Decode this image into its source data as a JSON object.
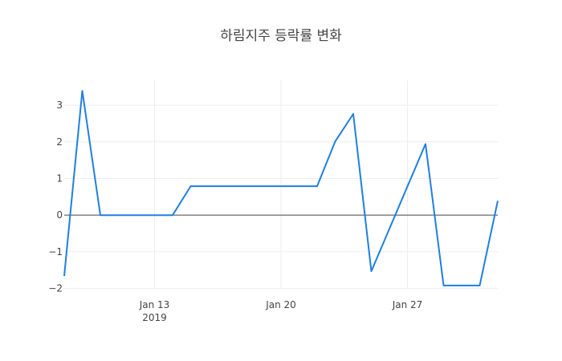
{
  "chart_data": {
    "type": "line",
    "title": "하림지주 등락률 변화",
    "xlabel": "",
    "ylabel": "",
    "x": [
      "2019-01-08",
      "2019-01-09",
      "2019-01-10",
      "2019-01-11",
      "2019-01-14",
      "2019-01-15",
      "2019-01-16",
      "2019-01-17",
      "2019-01-18",
      "2019-01-21",
      "2019-01-22",
      "2019-01-23",
      "2019-01-24",
      "2019-01-25",
      "2019-01-28",
      "2019-01-29",
      "2019-01-30",
      "2019-01-31",
      "2019-02-01"
    ],
    "series": [
      {
        "name": "등락률",
        "color": "#1f7fe0",
        "values": [
          -1.66,
          3.39,
          0,
          0,
          0,
          0.79,
          0.79,
          0.79,
          0.79,
          0.79,
          0.79,
          2.01,
          2.76,
          -1.53,
          1.94,
          -1.92,
          -1.92,
          -1.92,
          0.39
        ]
      }
    ],
    "xlim": [
      "2019-01-08",
      "2019-02-01"
    ],
    "ylim": [
      -2.01,
      3.68
    ],
    "x_ticks": [
      {
        "date": "2019-01-13",
        "label": "Jan 13",
        "sublabel": "2019"
      },
      {
        "date": "2019-01-20",
        "label": "Jan 20",
        "sublabel": ""
      },
      {
        "date": "2019-01-27",
        "label": "Jan 27",
        "sublabel": ""
      }
    ],
    "y_ticks": [
      3,
      2,
      1,
      0,
      -1,
      -2
    ],
    "y_tick_labels": [
      "3",
      "2",
      "1",
      "0",
      "−1",
      "−2"
    ],
    "grid": true,
    "zero_line": true,
    "legend": "none"
  },
  "colors": {
    "line": "#1f7fe0",
    "grid": "#eeeeee",
    "zero_line": "#444444",
    "text": "#444444"
  }
}
